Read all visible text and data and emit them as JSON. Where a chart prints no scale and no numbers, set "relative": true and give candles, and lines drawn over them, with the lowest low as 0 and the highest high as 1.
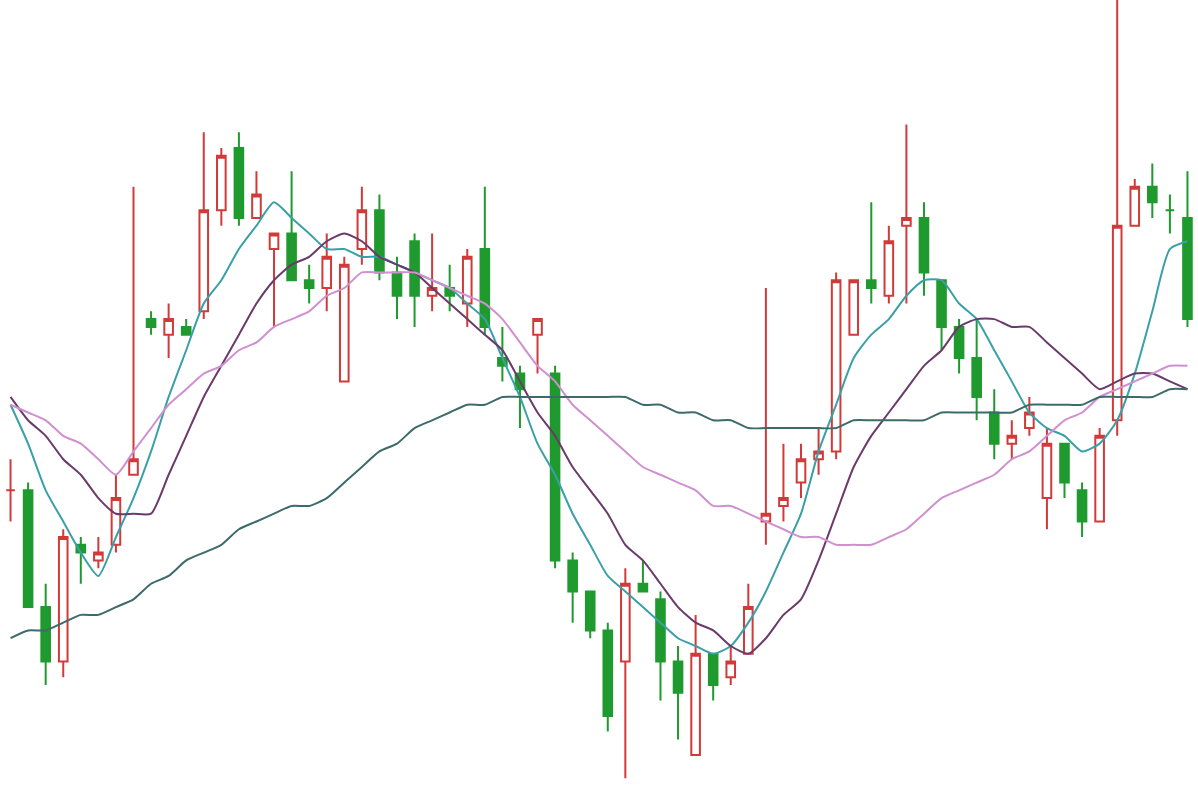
{
  "chart_data": {
    "type": "candlestick",
    "relative": true,
    "categories": [
      null,
      null,
      null,
      null,
      null,
      null,
      null,
      null,
      null,
      null,
      null,
      null,
      null,
      null,
      null,
      null,
      null,
      null,
      null,
      null,
      null,
      null,
      null,
      null,
      null,
      null,
      null,
      null,
      null,
      null,
      null,
      null,
      null,
      null,
      null,
      null,
      null,
      null,
      null,
      null,
      null,
      null,
      null,
      null,
      null,
      null,
      null,
      null,
      null,
      null,
      null,
      null,
      null,
      null,
      null,
      null,
      null,
      null,
      null,
      null,
      null,
      null,
      null,
      null,
      null,
      null,
      null,
      null
    ],
    "ohlc": [
      [
        0.37,
        0.41,
        0.33,
        0.37
      ],
      [
        0.37,
        0.38,
        0.22,
        0.22
      ],
      [
        0.22,
        0.25,
        0.12,
        0.15
      ],
      [
        0.15,
        0.32,
        0.13,
        0.31
      ],
      [
        0.3,
        0.31,
        0.25,
        0.29
      ],
      [
        0.28,
        0.31,
        0.27,
        0.29
      ],
      [
        0.3,
        0.39,
        0.29,
        0.36
      ],
      [
        0.39,
        0.76,
        0.39,
        0.41
      ],
      [
        0.59,
        0.6,
        0.57,
        0.58
      ],
      [
        0.57,
        0.61,
        0.54,
        0.59
      ],
      [
        0.58,
        0.59,
        0.57,
        0.57
      ],
      [
        0.6,
        0.83,
        0.59,
        0.73
      ],
      [
        0.73,
        0.81,
        0.71,
        0.8
      ],
      [
        0.81,
        0.83,
        0.71,
        0.72
      ],
      [
        0.72,
        0.78,
        0.72,
        0.75
      ],
      [
        0.68,
        0.7,
        0.58,
        0.7
      ],
      [
        0.7,
        0.78,
        0.64,
        0.64
      ],
      [
        0.64,
        0.66,
        0.61,
        0.63
      ],
      [
        0.63,
        0.7,
        0.6,
        0.67
      ],
      [
        0.51,
        0.67,
        0.51,
        0.66
      ],
      [
        0.68,
        0.76,
        0.66,
        0.73
      ],
      [
        0.73,
        0.75,
        0.64,
        0.65
      ],
      [
        0.65,
        0.67,
        0.59,
        0.62
      ],
      [
        0.69,
        0.7,
        0.58,
        0.62
      ],
      [
        0.62,
        0.7,
        0.6,
        0.63
      ],
      [
        0.63,
        0.66,
        0.6,
        0.62
      ],
      [
        0.61,
        0.68,
        0.58,
        0.67
      ],
      [
        0.68,
        0.76,
        0.57,
        0.58
      ],
      [
        0.54,
        0.58,
        0.51,
        0.53
      ],
      [
        0.52,
        0.53,
        0.45,
        0.5
      ],
      [
        0.57,
        0.59,
        0.52,
        0.59
      ],
      [
        0.52,
        0.53,
        0.27,
        0.28
      ],
      [
        0.28,
        0.29,
        0.2,
        0.24
      ],
      [
        0.24,
        0.24,
        0.18,
        0.19
      ],
      [
        0.19,
        0.2,
        0.06,
        0.08
      ],
      [
        0.15,
        0.27,
        0,
        0.25
      ],
      [
        0.25,
        0.28,
        0.24,
        0.24
      ],
      [
        0.23,
        0.24,
        0.1,
        0.15
      ],
      [
        0.15,
        0.17,
        0.05,
        0.11
      ],
      [
        0.03,
        0.21,
        0.03,
        0.16
      ],
      [
        0.16,
        0.16,
        0.1,
        0.12
      ],
      [
        0.13,
        0.17,
        0.12,
        0.15
      ],
      [
        0.16,
        0.25,
        0.16,
        0.22
      ],
      [
        0.33,
        0.63,
        0.3,
        0.34
      ],
      [
        0.35,
        0.43,
        0.33,
        0.36
      ],
      [
        0.38,
        0.43,
        0.36,
        0.41
      ],
      [
        0.41,
        0.45,
        0.39,
        0.42
      ],
      [
        0.42,
        0.65,
        0.41,
        0.64
      ],
      [
        0.57,
        0.64,
        0.57,
        0.64
      ],
      [
        0.64,
        0.74,
        0.61,
        0.63
      ],
      [
        0.62,
        0.71,
        0.61,
        0.69
      ],
      [
        0.71,
        0.84,
        0.61,
        0.72
      ],
      [
        0.72,
        0.74,
        0.62,
        0.65
      ],
      [
        0.64,
        0.64,
        0.55,
        0.58
      ],
      [
        0.58,
        0.59,
        0.52,
        0.54
      ],
      [
        0.54,
        0.59,
        0.46,
        0.49
      ],
      [
        0.47,
        0.5,
        0.41,
        0.43
      ],
      [
        0.43,
        0.46,
        0.41,
        0.44
      ],
      [
        0.45,
        0.49,
        0.44,
        0.47
      ],
      [
        0.36,
        0.45,
        0.32,
        0.43
      ],
      [
        0.43,
        0.43,
        0.36,
        0.38
      ],
      [
        0.37,
        0.38,
        0.31,
        0.33
      ],
      [
        0.33,
        0.45,
        0.33,
        0.44
      ],
      [
        0.46,
        1,
        0.44,
        0.71
      ],
      [
        0.71,
        0.77,
        0.71,
        0.76
      ],
      [
        0.76,
        0.79,
        0.72,
        0.74
      ],
      [
        0.73,
        0.75,
        0.7,
        0.73
      ],
      [
        0.72,
        0.78,
        0.58,
        0.59
      ]
    ],
    "colors": [
      "#d23a3a",
      "#1f9a2e",
      "#1f9a2e",
      "#d23a3a",
      "#1f9a2e",
      "#d23a3a",
      "#d23a3a",
      "#d23a3a",
      "#1f9a2e",
      "#d23a3a",
      "#1f9a2e",
      "#d23a3a",
      "#d23a3a",
      "#1f9a2e",
      "#d23a3a",
      "#d23a3a",
      "#1f9a2e",
      "#1f9a2e",
      "#d23a3a",
      "#d23a3a",
      "#d23a3a",
      "#1f9a2e",
      "#1f9a2e",
      "#1f9a2e",
      "#d23a3a",
      "#1f9a2e",
      "#d23a3a",
      "#1f9a2e",
      "#1f9a2e",
      "#1f9a2e",
      "#d23a3a",
      "#1f9a2e",
      "#1f9a2e",
      "#1f9a2e",
      "#1f9a2e",
      "#d23a3a",
      "#1f9a2e",
      "#1f9a2e",
      "#1f9a2e",
      "#d23a3a",
      "#1f9a2e",
      "#d23a3a",
      "#d23a3a",
      "#d23a3a",
      "#d23a3a",
      "#d23a3a",
      "#d23a3a",
      "#d23a3a",
      "#d23a3a",
      "#1f9a2e",
      "#d23a3a",
      "#d23a3a",
      "#1f9a2e",
      "#1f9a2e",
      "#1f9a2e",
      "#1f9a2e",
      "#1f9a2e",
      "#d23a3a",
      "#d23a3a",
      "#d23a3a",
      "#1f9a2e",
      "#1f9a2e",
      "#d23a3a",
      "#d23a3a",
      "#d23a3a",
      "#1f9a2e",
      "#1f9a2e",
      "#1f9a2e"
    ],
    "series": [
      {
        "type": "line",
        "color": "#3aa0a8",
        "values": [
          0.48,
          0.43,
          0.37,
          0.33,
          0.29,
          0.26,
          0.31,
          0.36,
          0.42,
          0.49,
          0.55,
          0.61,
          0.64,
          0.68,
          0.71,
          0.74,
          0.72,
          0.7,
          0.68,
          0.68,
          0.67,
          0.67,
          0.66,
          0.65,
          0.64,
          0.63,
          0.61,
          0.59,
          0.54,
          0.49,
          0.43,
          0.39,
          0.34,
          0.3,
          0.26,
          0.24,
          0.22,
          0.2,
          0.18,
          0.17,
          0.16,
          0.17,
          0.2,
          0.24,
          0.29,
          0.34,
          0.42,
          0.48,
          0.54,
          0.57,
          0.59,
          0.62,
          0.64,
          0.64,
          0.61,
          0.59,
          0.55,
          0.51,
          0.47,
          0.45,
          0.44,
          0.42,
          0.43,
          0.46,
          0.52,
          0.6,
          0.68,
          0.69
        ]
      },
      {
        "type": "line",
        "color": "#6b3a6b",
        "values": [
          0.49,
          0.46,
          0.44,
          0.41,
          0.39,
          0.36,
          0.34,
          0.34,
          0.34,
          0.39,
          0.44,
          0.49,
          0.53,
          0.57,
          0.61,
          0.64,
          0.66,
          0.67,
          0.69,
          0.7,
          0.69,
          0.67,
          0.66,
          0.65,
          0.63,
          0.61,
          0.59,
          0.57,
          0.55,
          0.51,
          0.47,
          0.44,
          0.4,
          0.37,
          0.34,
          0.3,
          0.28,
          0.25,
          0.22,
          0.2,
          0.19,
          0.17,
          0.16,
          0.18,
          0.21,
          0.23,
          0.28,
          0.34,
          0.4,
          0.44,
          0.47,
          0.5,
          0.53,
          0.55,
          0.58,
          0.59,
          0.59,
          0.58,
          0.58,
          0.56,
          0.54,
          0.52,
          0.5,
          0.51,
          0.52,
          0.52,
          0.51,
          0.5
        ]
      },
      {
        "type": "line",
        "color": "#d090d0",
        "values": [
          0.48,
          0.47,
          0.46,
          0.44,
          0.43,
          0.41,
          0.39,
          0.42,
          0.45,
          0.48,
          0.5,
          0.52,
          0.53,
          0.55,
          0.56,
          0.58,
          0.59,
          0.6,
          0.62,
          0.63,
          0.65,
          0.65,
          0.65,
          0.65,
          0.64,
          0.63,
          0.62,
          0.61,
          0.59,
          0.56,
          0.53,
          0.51,
          0.48,
          0.46,
          0.44,
          0.42,
          0.4,
          0.39,
          0.38,
          0.37,
          0.35,
          0.35,
          0.34,
          0.33,
          0.32,
          0.31,
          0.31,
          0.3,
          0.3,
          0.3,
          0.31,
          0.32,
          0.34,
          0.36,
          0.37,
          0.38,
          0.39,
          0.41,
          0.42,
          0.44,
          0.46,
          0.47,
          0.49,
          0.5,
          0.51,
          0.52,
          0.53,
          0.53
        ]
      },
      {
        "type": "line",
        "color": "#3d6b6b",
        "values": [
          0.18,
          0.19,
          0.19,
          0.2,
          0.21,
          0.21,
          0.22,
          0.23,
          0.25,
          0.26,
          0.28,
          0.29,
          0.3,
          0.32,
          0.33,
          0.34,
          0.35,
          0.35,
          0.36,
          0.38,
          0.4,
          0.42,
          0.43,
          0.45,
          0.46,
          0.47,
          0.48,
          0.48,
          0.49,
          0.49,
          0.49,
          0.49,
          0.49,
          0.49,
          0.49,
          0.49,
          0.48,
          0.48,
          0.47,
          0.47,
          0.46,
          0.46,
          0.45,
          0.45,
          0.45,
          0.45,
          0.45,
          0.45,
          0.46,
          0.46,
          0.46,
          0.46,
          0.46,
          0.47,
          0.47,
          0.47,
          0.47,
          0.47,
          0.48,
          0.48,
          0.48,
          0.48,
          0.49,
          0.49,
          0.49,
          0.49,
          0.5,
          0.5
        ]
      }
    ]
  }
}
